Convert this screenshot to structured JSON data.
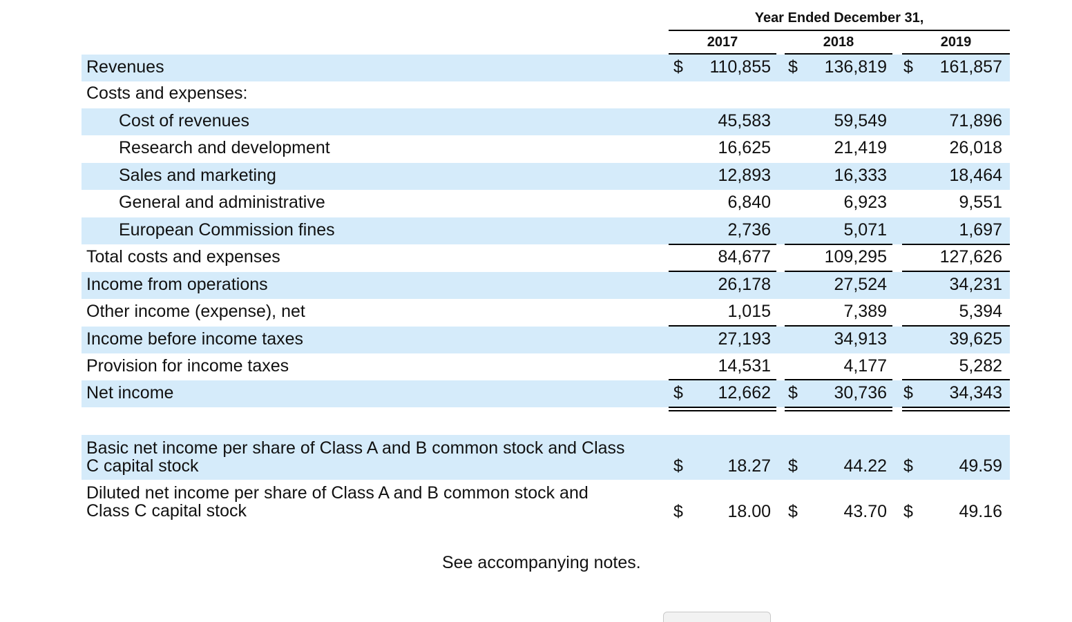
{
  "header": {
    "title": "Year Ended December 31,",
    "years": [
      "2017",
      "2018",
      "2019"
    ]
  },
  "rows": [
    {
      "label": "Revenues",
      "values": [
        "110,855",
        "136,819",
        "161,857"
      ],
      "dollar": true
    },
    {
      "label": "Costs and expenses:",
      "values": [
        "",
        "",
        ""
      ]
    },
    {
      "label": "Cost of revenues",
      "values": [
        "45,583",
        "59,549",
        "71,896"
      ]
    },
    {
      "label": "Research and development",
      "values": [
        "16,625",
        "21,419",
        "26,018"
      ]
    },
    {
      "label": "Sales and marketing",
      "values": [
        "12,893",
        "16,333",
        "18,464"
      ]
    },
    {
      "label": "General and administrative",
      "values": [
        "6,840",
        "6,923",
        "9,551"
      ]
    },
    {
      "label": "European Commission fines",
      "values": [
        "2,736",
        "5,071",
        "1,697"
      ]
    },
    {
      "label": "Total costs and expenses",
      "values": [
        "84,677",
        "109,295",
        "127,626"
      ]
    },
    {
      "label": "Income from operations",
      "values": [
        "26,178",
        "27,524",
        "34,231"
      ]
    },
    {
      "label": "Other income (expense), net",
      "values": [
        "1,015",
        "7,389",
        "5,394"
      ]
    },
    {
      "label": "Income before income taxes",
      "values": [
        "27,193",
        "34,913",
        "39,625"
      ]
    },
    {
      "label": "Provision for income taxes",
      "values": [
        "14,531",
        "4,177",
        "5,282"
      ]
    },
    {
      "label": "Net income",
      "values": [
        "12,662",
        "30,736",
        "34,343"
      ],
      "dollar": true
    }
  ],
  "eps": [
    {
      "label_line1": "Basic net income per share of Class A and B common stock and Class",
      "label_line2": "C capital stock",
      "values": [
        "18.27",
        "44.22",
        "49.59"
      ]
    },
    {
      "label_line1": "Diluted net income per share of Class A and B common stock and",
      "label_line2": "Class C capital stock",
      "values": [
        "18.00",
        "43.70",
        "49.16"
      ]
    }
  ],
  "currency_symbol": "$",
  "footer": {
    "notes": "See accompanying notes."
  },
  "colors": {
    "row_shade": "#d5ebfa",
    "rule": "#000000"
  }
}
